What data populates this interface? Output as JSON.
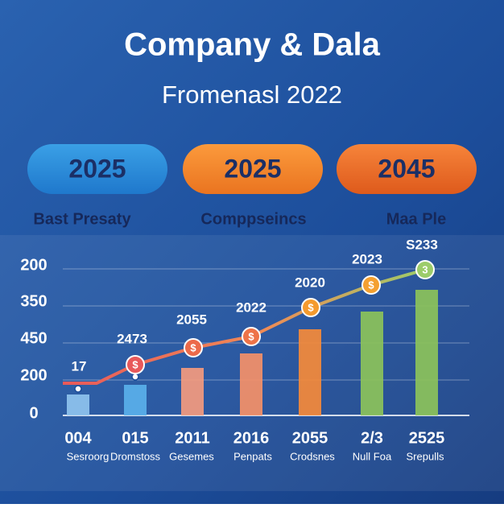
{
  "header": {
    "title": "Company & Dala",
    "subtitle": "Fromenasl 2022"
  },
  "pills": [
    {
      "value": "2025",
      "label": "Bast Presaty"
    },
    {
      "value": "2025",
      "label": "Comppseincs"
    },
    {
      "value": "2045",
      "label": "Maa Ple"
    }
  ],
  "panel": {
    "axis_labels": [
      "200",
      "350",
      "450",
      "200",
      "0"
    ],
    "point_labels": [
      "17",
      "2473",
      "2055",
      "2022",
      "2020",
      "2023",
      "S233"
    ],
    "icons": [
      "$",
      "$",
      "$",
      "$",
      "$",
      "3"
    ],
    "columns": [
      {
        "label": "004",
        "caption": "Sesroorg"
      },
      {
        "label": "015",
        "caption": "Dromstoss"
      },
      {
        "label": "2011",
        "caption": "Gesemes"
      },
      {
        "label": "2016",
        "caption": "Penpats"
      },
      {
        "label": "2055",
        "caption": "Crodsnes"
      },
      {
        "label": "2/3",
        "caption": "Null Foa"
      },
      {
        "label": "2525",
        "caption": "Srepulls"
      }
    ]
  }
}
